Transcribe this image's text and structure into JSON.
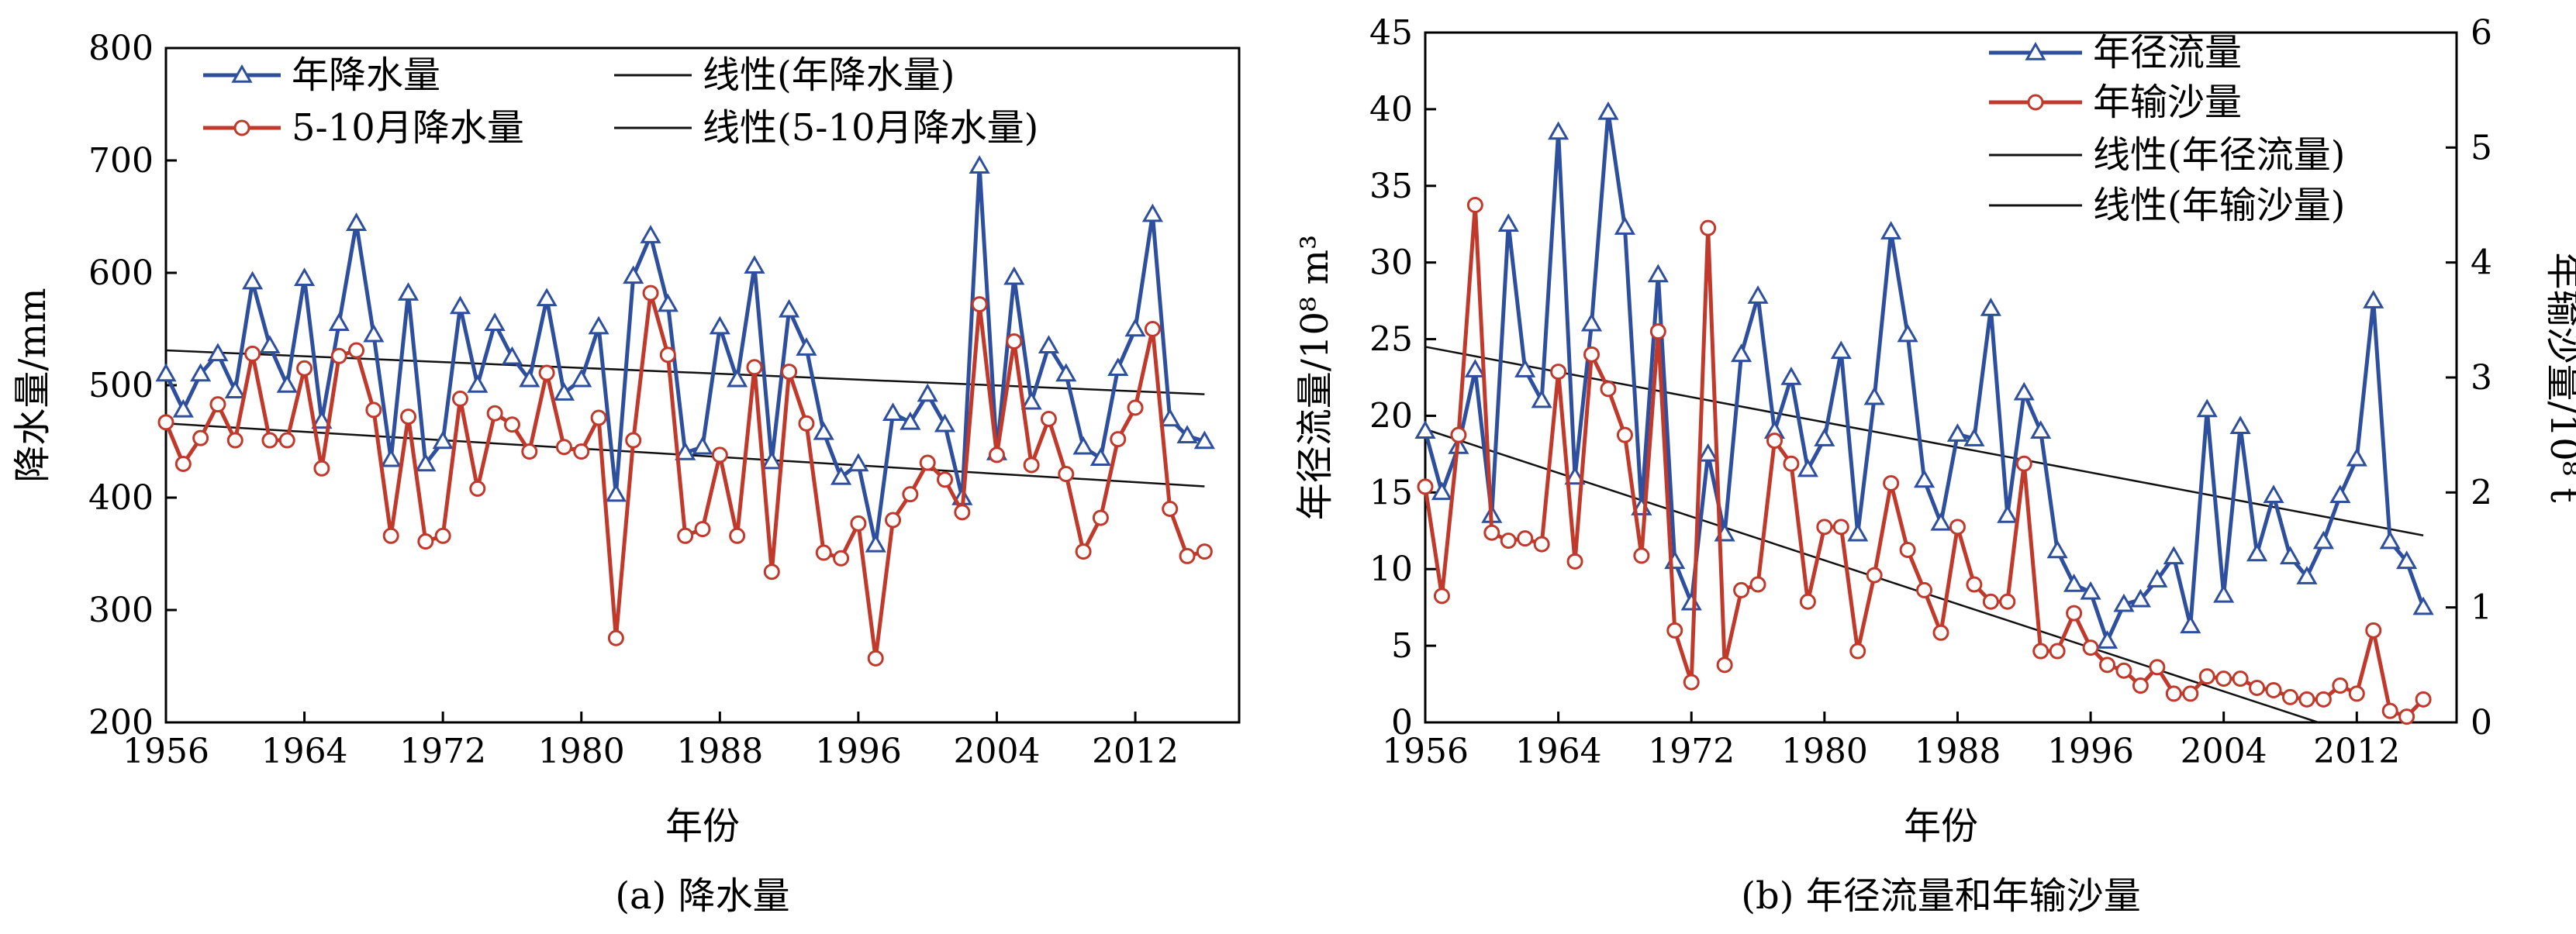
{
  "chart_data": [
    {
      "type": "line",
      "caption": "(a) 降水量",
      "xlabel": "年份",
      "ylabel": "降水量/mm",
      "xlim": [
        1956,
        2018
      ],
      "ylim": [
        200,
        800
      ],
      "xticks": [
        1956,
        1964,
        1972,
        1980,
        1988,
        1996,
        2004,
        2012
      ],
      "yticks": [
        200,
        300,
        400,
        500,
        600,
        700,
        800
      ],
      "legend_position": "top-left",
      "grid": false,
      "x": [
        1956,
        1957,
        1958,
        1959,
        1960,
        1961,
        1962,
        1963,
        1964,
        1965,
        1966,
        1967,
        1968,
        1969,
        1970,
        1971,
        1972,
        1973,
        1974,
        1975,
        1976,
        1977,
        1978,
        1979,
        1980,
        1981,
        1982,
        1983,
        1984,
        1985,
        1986,
        1987,
        1988,
        1989,
        1990,
        1991,
        1992,
        1993,
        1994,
        1995,
        1996,
        1997,
        1998,
        1999,
        2000,
        2001,
        2002,
        2003,
        2004,
        2005,
        2006,
        2007,
        2008,
        2009,
        2010,
        2011,
        2012,
        2013,
        2014,
        2015,
        2016
      ],
      "series": [
        {
          "name": "年降水量",
          "color": "#2d4f9e",
          "marker": "triangle",
          "values": [
            510,
            478,
            510,
            528,
            495,
            592,
            535,
            500,
            595,
            468,
            555,
            644,
            545,
            434,
            582,
            430,
            450,
            570,
            500,
            555,
            525,
            505,
            577,
            493,
            505,
            552,
            403,
            597,
            633,
            572,
            440,
            445,
            552,
            505,
            606,
            432,
            567,
            533,
            458,
            418,
            430,
            358,
            475,
            467,
            492,
            465,
            400,
            695,
            440,
            596,
            485,
            535,
            510,
            445,
            435,
            515,
            550,
            652,
            470,
            455,
            450
          ]
        },
        {
          "name": "5-10月降水量",
          "color": "#c0392b",
          "marker": "circle",
          "values": [
            467,
            430,
            453,
            483,
            451,
            528,
            451,
            451,
            515,
            426,
            526,
            531,
            478,
            366,
            472,
            361,
            366,
            488,
            408,
            475,
            465,
            441,
            511,
            445,
            441,
            471,
            275,
            451,
            582,
            527,
            366,
            372,
            438,
            366,
            516,
            334,
            512,
            466,
            351,
            346,
            377,
            257,
            380,
            403,
            431,
            416,
            387,
            572,
            438,
            539,
            429,
            470,
            421,
            352,
            382,
            452,
            480,
            550,
            390,
            348,
            352
          ]
        },
        {
          "name": "线性(年降水量)",
          "color": "#111111",
          "marker": "none",
          "trend": [
            531,
            492
          ]
        },
        {
          "name": "线性(5-10月降水量)",
          "color": "#111111",
          "marker": "none",
          "trend": [
            466,
            410
          ]
        }
      ]
    },
    {
      "type": "line",
      "caption": "(b) 年径流量和年输沙量",
      "xlabel": "年份",
      "ylabel": "年径流量/10⁸ m³",
      "ylabel_right": "年输沙量/10⁸ t",
      "xlim": [
        1956,
        2018
      ],
      "ylim": [
        0,
        45
      ],
      "ylim_right": [
        0,
        6
      ],
      "xticks": [
        1956,
        1964,
        1972,
        1980,
        1988,
        1996,
        2004,
        2012
      ],
      "yticks": [
        0,
        5,
        10,
        15,
        20,
        25,
        30,
        35,
        40,
        45
      ],
      "yticks_right": [
        0,
        1,
        2,
        3,
        4,
        5,
        6
      ],
      "legend_position": "top-right",
      "grid": false,
      "x": [
        1956,
        1957,
        1958,
        1959,
        1960,
        1961,
        1962,
        1963,
        1964,
        1965,
        1966,
        1967,
        1968,
        1969,
        1970,
        1971,
        1972,
        1973,
        1974,
        1975,
        1976,
        1977,
        1978,
        1979,
        1980,
        1981,
        1982,
        1983,
        1984,
        1985,
        1986,
        1987,
        1988,
        1989,
        1990,
        1991,
        1992,
        1993,
        1994,
        1995,
        1996,
        1997,
        1998,
        1999,
        2000,
        2001,
        2002,
        2003,
        2004,
        2005,
        2006,
        2007,
        2008,
        2009,
        2010,
        2011,
        2012,
        2013,
        2014,
        2015,
        2016
      ],
      "series": [
        {
          "name": "年径流量",
          "axis": "left",
          "color": "#2d4f9e",
          "marker": "triangle",
          "values": [
            19,
            15,
            18,
            23,
            13.5,
            32.5,
            23,
            21,
            38.5,
            16,
            26,
            39.8,
            32.3,
            14,
            29.2,
            10.5,
            7.8,
            17.5,
            12.3,
            24,
            27.8,
            19,
            22.5,
            16.5,
            18.5,
            24.2,
            12.3,
            21.2,
            32,
            25.3,
            15.8,
            13,
            18.8,
            18.5,
            27,
            13.5,
            21.5,
            19,
            11.2,
            9,
            8.5,
            5.3,
            7.7,
            8,
            9.3,
            10.8,
            6.3,
            20.4,
            8.3,
            19.3,
            11,
            14.8,
            10.8,
            9.5,
            11.8,
            14.8,
            17.2,
            27.5,
            11.8,
            10.5,
            7.5
          ]
        },
        {
          "name": "年输沙量",
          "axis": "right",
          "color": "#c0392b",
          "marker": "circle",
          "values": [
            2.05,
            1.1,
            2.5,
            4.5,
            1.65,
            1.58,
            1.6,
            1.55,
            3.05,
            1.4,
            3.2,
            2.9,
            2.5,
            1.45,
            3.4,
            0.8,
            0.35,
            4.3,
            0.5,
            1.15,
            1.2,
            2.45,
            2.25,
            1.05,
            1.7,
            1.7,
            0.62,
            1.28,
            2.08,
            1.5,
            1.15,
            0.78,
            1.7,
            1.2,
            1.05,
            1.05,
            2.25,
            0.62,
            0.62,
            0.95,
            0.65,
            0.5,
            0.45,
            0.32,
            0.48,
            0.25,
            0.25,
            0.4,
            0.38,
            0.38,
            0.3,
            0.28,
            0.22,
            0.2,
            0.2,
            0.32,
            0.25,
            0.8,
            0.1,
            0.05,
            0.2
          ]
        },
        {
          "name": "线性(年径流量)",
          "axis": "left",
          "color": "#111111",
          "marker": "none",
          "trend": [
            24.5,
            12.2
          ]
        },
        {
          "name": "线性(年输沙量)",
          "axis": "right",
          "color": "#111111",
          "marker": "none",
          "trend": [
            2.55,
            -0.3
          ]
        }
      ]
    }
  ]
}
